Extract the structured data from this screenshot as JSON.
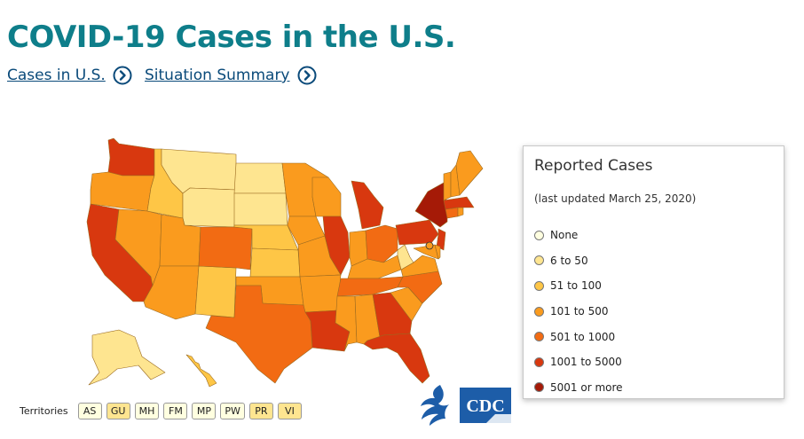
{
  "page": {
    "title": "COVID-19 Cases in the U.S.",
    "links": [
      {
        "label": "Cases in U.S."
      },
      {
        "label": "Situation Summary"
      }
    ]
  },
  "colors": {
    "title": "#0e7e8a",
    "link": "#0a4a7a",
    "none": "#ffffe0",
    "6_50": "#fee590",
    "51_100": "#fec646",
    "101_500": "#fa9b1e",
    "501_1000": "#f26b13",
    "1001_5000": "#d8380f",
    "5001_more": "#a51a07"
  },
  "legend": {
    "title": "Reported Cases",
    "updated": "(last updated March 25, 2020)",
    "items": [
      {
        "label": "None",
        "color": "#ffffe0"
      },
      {
        "label": "6 to 50",
        "color": "#fee590"
      },
      {
        "label": "51 to 100",
        "color": "#fec646"
      },
      {
        "label": "101 to 500",
        "color": "#fa9b1e"
      },
      {
        "label": "501 to 1000",
        "color": "#f26b13"
      },
      {
        "label": "1001 to 5000",
        "color": "#d8380f"
      },
      {
        "label": "5001 or more",
        "color": "#a51a07"
      }
    ]
  },
  "territories": {
    "label": "Territories",
    "items": [
      {
        "code": "AS",
        "color": "#ffffe0"
      },
      {
        "code": "GU",
        "color": "#fee590"
      },
      {
        "code": "MH",
        "color": "#ffffe0"
      },
      {
        "code": "FM",
        "color": "#ffffe0"
      },
      {
        "code": "MP",
        "color": "#ffffe0"
      },
      {
        "code": "PW",
        "color": "#ffffe0"
      },
      {
        "code": "PR",
        "color": "#fee590"
      },
      {
        "code": "VI",
        "color": "#fee590"
      }
    ]
  },
  "logos": {
    "cdc": "CDC"
  },
  "map": {
    "states": [
      {
        "code": "WA",
        "category": "1001_5000"
      },
      {
        "code": "OR",
        "category": "101_500"
      },
      {
        "code": "CA",
        "category": "1001_5000"
      },
      {
        "code": "NV",
        "category": "101_500"
      },
      {
        "code": "ID",
        "category": "51_100"
      },
      {
        "code": "MT",
        "category": "6_50"
      },
      {
        "code": "WY",
        "category": "6_50"
      },
      {
        "code": "UT",
        "category": "101_500"
      },
      {
        "code": "AZ",
        "category": "101_500"
      },
      {
        "code": "NM",
        "category": "51_100"
      },
      {
        "code": "CO",
        "category": "501_1000"
      },
      {
        "code": "ND",
        "category": "6_50"
      },
      {
        "code": "SD",
        "category": "6_50"
      },
      {
        "code": "NE",
        "category": "51_100"
      },
      {
        "code": "KS",
        "category": "51_100"
      },
      {
        "code": "OK",
        "category": "101_500"
      },
      {
        "code": "TX",
        "category": "501_1000"
      },
      {
        "code": "MN",
        "category": "101_500"
      },
      {
        "code": "IA",
        "category": "101_500"
      },
      {
        "code": "MO",
        "category": "101_500"
      },
      {
        "code": "AR",
        "category": "101_500"
      },
      {
        "code": "LA",
        "category": "1001_5000"
      },
      {
        "code": "WI",
        "category": "101_500"
      },
      {
        "code": "IL",
        "category": "1001_5000"
      },
      {
        "code": "MI",
        "category": "1001_5000"
      },
      {
        "code": "IN",
        "category": "101_500"
      },
      {
        "code": "OH",
        "category": "501_1000"
      },
      {
        "code": "KY",
        "category": "101_500"
      },
      {
        "code": "TN",
        "category": "501_1000"
      },
      {
        "code": "MS",
        "category": "101_500"
      },
      {
        "code": "AL",
        "category": "101_500"
      },
      {
        "code": "GA",
        "category": "1001_5000"
      },
      {
        "code": "FL",
        "category": "1001_5000"
      },
      {
        "code": "SC",
        "category": "101_500"
      },
      {
        "code": "NC",
        "category": "501_1000"
      },
      {
        "code": "VA",
        "category": "101_500"
      },
      {
        "code": "WV",
        "category": "6_50"
      },
      {
        "code": "PA",
        "category": "1001_5000"
      },
      {
        "code": "NY",
        "category": "5001_more"
      },
      {
        "code": "NJ",
        "category": "1001_5000"
      },
      {
        "code": "MD",
        "category": "101_500"
      },
      {
        "code": "DE",
        "category": "101_500"
      },
      {
        "code": "DC",
        "category": "101_500"
      },
      {
        "code": "CT",
        "category": "501_1000"
      },
      {
        "code": "RI",
        "category": "101_500"
      },
      {
        "code": "MA",
        "category": "1001_5000"
      },
      {
        "code": "VT",
        "category": "101_500"
      },
      {
        "code": "NH",
        "category": "101_500"
      },
      {
        "code": "ME",
        "category": "101_500"
      },
      {
        "code": "AK",
        "category": "6_50"
      },
      {
        "code": "HI",
        "category": "51_100"
      }
    ]
  }
}
